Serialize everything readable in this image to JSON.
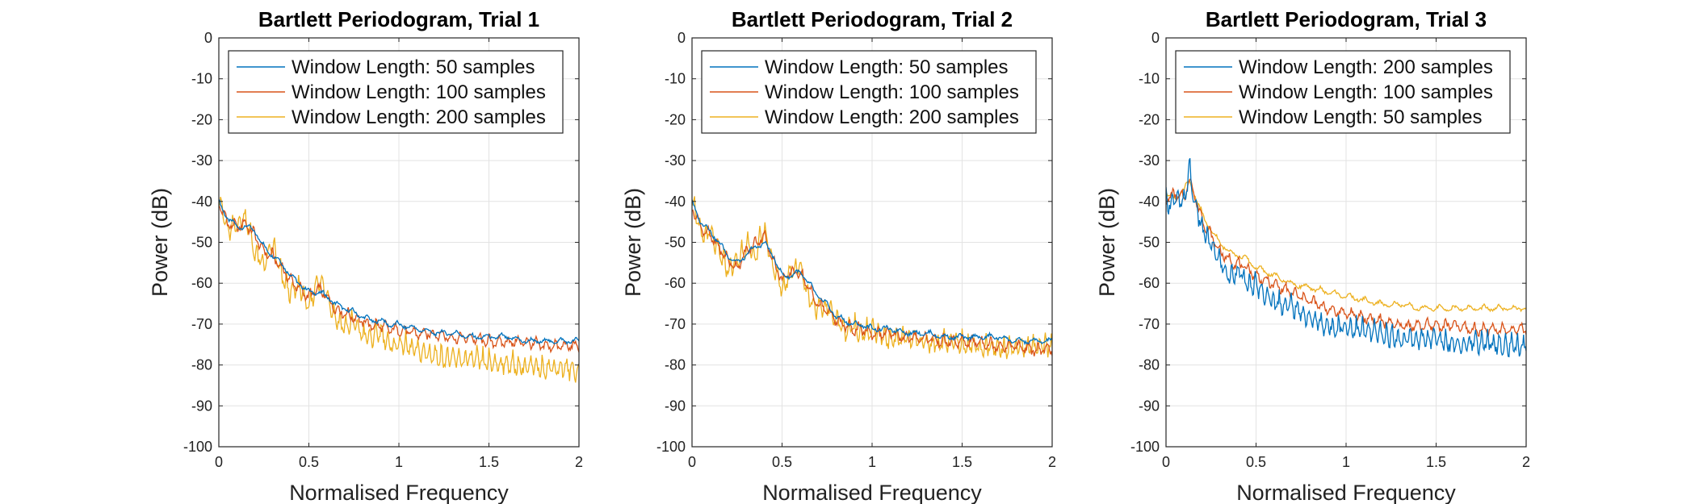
{
  "chart_data": [
    {
      "type": "line",
      "title": "Bartlett Periodogram, Trial 1",
      "xlabel": "Normalised Frequency",
      "ylabel": "Power (dB)",
      "xlim": [
        0,
        2
      ],
      "ylim": [
        -100,
        0
      ],
      "xticks": [
        "0",
        "0.5",
        "1",
        "1.5",
        "2"
      ],
      "yticks": [
        "0",
        "-10",
        "-20",
        "-30",
        "-40",
        "-50",
        "-60",
        "-70",
        "-80",
        "-90",
        "-100"
      ],
      "grid": true,
      "legend": "top-left",
      "x": [
        0,
        0.05,
        0.1,
        0.15,
        0.2,
        0.25,
        0.3,
        0.35,
        0.4,
        0.45,
        0.5,
        0.55,
        0.6,
        0.65,
        0.7,
        0.75,
        0.8,
        0.85,
        0.9,
        0.95,
        1,
        1.1,
        1.2,
        1.3,
        1.4,
        1.5,
        1.6,
        1.7,
        1.8,
        1.9,
        2
      ],
      "series": [
        {
          "name": "Window Length: 50 samples",
          "color": "#0072BD",
          "values": [
            -40,
            -44,
            -46,
            -46,
            -47,
            -51,
            -53,
            -55,
            -58,
            -60,
            -62,
            -62,
            -63,
            -65,
            -66,
            -67,
            -68,
            -69,
            -69,
            -70,
            -70,
            -71,
            -72,
            -72,
            -73,
            -73,
            -73,
            -74,
            -74,
            -74,
            -74
          ]
        },
        {
          "name": "Window Length: 100 samples",
          "color": "#D95319",
          "values": [
            -40,
            -45,
            -46,
            -45,
            -48,
            -52,
            -53,
            -56,
            -59,
            -61,
            -63,
            -61,
            -63,
            -66,
            -67,
            -68,
            -69,
            -70,
            -70,
            -71,
            -71,
            -72,
            -72,
            -73,
            -73,
            -74,
            -74,
            -74,
            -75,
            -75,
            -75
          ]
        },
        {
          "name": "Window Length: 200 samples",
          "color": "#EDB120",
          "values": [
            -38,
            -47,
            -45,
            -43,
            -52,
            -55,
            -50,
            -58,
            -62,
            -60,
            -66,
            -58,
            -62,
            -68,
            -70,
            -69,
            -72,
            -73,
            -71,
            -75,
            -74,
            -76,
            -77,
            -78,
            -78,
            -79,
            -79,
            -80,
            -80,
            -80,
            -81
          ]
        }
      ]
    },
    {
      "type": "line",
      "title": "Bartlett Periodogram, Trial 2",
      "xlabel": "Normalised Frequency",
      "ylabel": "Power (dB)",
      "xlim": [
        0,
        2
      ],
      "ylim": [
        -100,
        0
      ],
      "xticks": [
        "0",
        "0.5",
        "1",
        "1.5",
        "2"
      ],
      "yticks": [
        "0",
        "-10",
        "-20",
        "-30",
        "-40",
        "-50",
        "-60",
        "-70",
        "-80",
        "-90",
        "-100"
      ],
      "grid": true,
      "legend": "top-left",
      "x": [
        0,
        0.05,
        0.1,
        0.15,
        0.2,
        0.25,
        0.3,
        0.35,
        0.4,
        0.45,
        0.5,
        0.55,
        0.6,
        0.65,
        0.7,
        0.75,
        0.8,
        0.85,
        0.9,
        0.95,
        1,
        1.1,
        1.2,
        1.3,
        1.4,
        1.5,
        1.6,
        1.7,
        1.8,
        1.9,
        2
      ],
      "series": [
        {
          "name": "Window Length: 50 samples",
          "color": "#0072BD",
          "values": [
            -40,
            -45,
            -47,
            -50,
            -53,
            -55,
            -53,
            -51,
            -50,
            -53,
            -58,
            -58,
            -57,
            -60,
            -63,
            -65,
            -68,
            -69,
            -70,
            -70,
            -71,
            -71,
            -72,
            -72,
            -73,
            -73,
            -73,
            -73,
            -74,
            -74,
            -74
          ]
        },
        {
          "name": "Window Length: 100 samples",
          "color": "#D95319",
          "values": [
            -41,
            -46,
            -48,
            -51,
            -54,
            -56,
            -52,
            -50,
            -48,
            -54,
            -59,
            -57,
            -57,
            -61,
            -65,
            -66,
            -69,
            -70,
            -71,
            -71,
            -72,
            -72,
            -73,
            -73,
            -74,
            -74,
            -74,
            -75,
            -75,
            -76,
            -76
          ]
        },
        {
          "name": "Window Length: 200 samples",
          "color": "#EDB120",
          "values": [
            -38,
            -48,
            -47,
            -52,
            -56,
            -54,
            -50,
            -53,
            -46,
            -55,
            -61,
            -56,
            -55,
            -63,
            -66,
            -65,
            -68,
            -71,
            -70,
            -72,
            -71,
            -73,
            -73,
            -74,
            -74,
            -74,
            -75,
            -75,
            -75,
            -75,
            -75
          ]
        }
      ]
    },
    {
      "type": "line",
      "title": "Bartlett Periodogram, Trial 3",
      "xlabel": "Normalised Frequency",
      "ylabel": "Power (dB)",
      "xlim": [
        0,
        2
      ],
      "ylim": [
        -100,
        0
      ],
      "xticks": [
        "0",
        "0.5",
        "1",
        "1.5",
        "2"
      ],
      "yticks": [
        "0",
        "-10",
        "-20",
        "-30",
        "-40",
        "-50",
        "-60",
        "-70",
        "-80",
        "-90",
        "-100"
      ],
      "grid": true,
      "legend": "top-left",
      "x": [
        0,
        0.05,
        0.1,
        0.13,
        0.15,
        0.2,
        0.25,
        0.3,
        0.35,
        0.4,
        0.45,
        0.5,
        0.6,
        0.7,
        0.8,
        0.9,
        1,
        1.1,
        1.2,
        1.3,
        1.4,
        1.5,
        1.6,
        1.7,
        1.8,
        1.9,
        2
      ],
      "series": [
        {
          "name": "Window Length: 200 samples",
          "color": "#0072BD",
          "values": [
            -40,
            -39,
            -40,
            -31,
            -38,
            -46,
            -50,
            -54,
            -58,
            -56,
            -60,
            -60,
            -64,
            -65,
            -68,
            -70,
            -70,
            -71,
            -72,
            -73,
            -73,
            -73,
            -74,
            -74,
            -74,
            -75,
            -75
          ]
        },
        {
          "name": "Window Length: 100 samples",
          "color": "#D95319",
          "values": [
            -39,
            -38,
            -39,
            -34,
            -37,
            -44,
            -48,
            -52,
            -54,
            -55,
            -56,
            -58,
            -60,
            -62,
            -64,
            -66,
            -67,
            -68,
            -69,
            -70,
            -70,
            -70,
            -70,
            -71,
            -71,
            -71,
            -71
          ]
        },
        {
          "name": "Window Length: 50 samples",
          "color": "#EDB120",
          "values": [
            -38,
            -39,
            -37,
            -35,
            -37,
            -43,
            -47,
            -50,
            -52,
            -53,
            -54,
            -56,
            -58,
            -60,
            -61,
            -62,
            -63,
            -64,
            -65,
            -65,
            -66,
            -66,
            -66,
            -66,
            -66,
            -66,
            -66
          ]
        }
      ]
    }
  ]
}
